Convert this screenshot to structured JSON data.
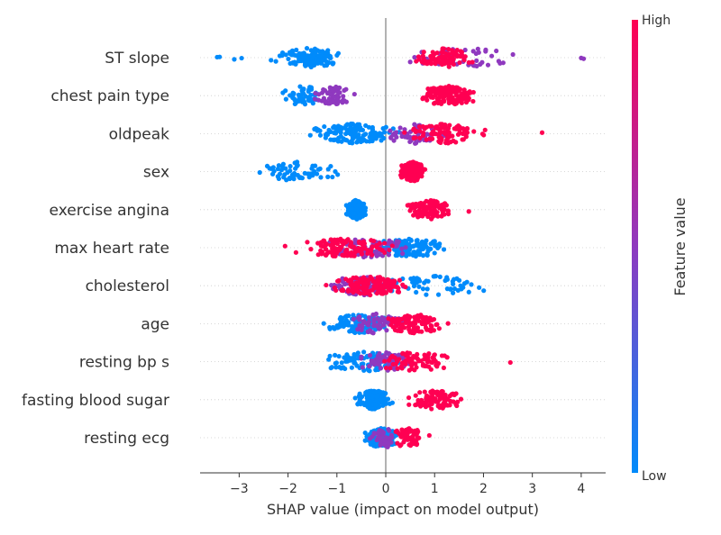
{
  "chart_data": {
    "type": "scatter",
    "subtype": "shap-beeswarm",
    "xlabel": "SHAP value (impact on model output)",
    "xlim": [
      -3.8,
      4.5
    ],
    "x_ticks": [
      -3,
      -2,
      -1,
      0,
      1,
      2,
      3,
      4
    ],
    "x_tick_labels": [
      "−3",
      "−2",
      "−1",
      "0",
      "1",
      "2",
      "3",
      "4"
    ],
    "features": [
      {
        "name": "ST slope",
        "low": {
          "min": -2.8,
          "max": -0.9,
          "center": -1.55,
          "n": 120,
          "tail": [
            -3.45,
            -3.4,
            -3.1,
            -2.95
          ]
        },
        "mid": {
          "min": 0.5,
          "max": 3.5,
          "center": 1.6,
          "n": 50,
          "tail": [
            4.0,
            4.05
          ]
        },
        "high": {
          "min": 0.6,
          "max": 2.2,
          "center": 1.2,
          "n": 80,
          "tail": []
        }
      },
      {
        "name": "chest pain type",
        "low": {
          "min": -2.6,
          "max": -1.3,
          "center": -1.7,
          "n": 50,
          "tail": []
        },
        "mid": {
          "min": -1.5,
          "max": -0.5,
          "center": -1.05,
          "n": 55,
          "tail": []
        },
        "high": {
          "min": 0.7,
          "max": 2.3,
          "center": 1.25,
          "n": 150,
          "tail": []
        }
      },
      {
        "name": "oldpeak",
        "low": {
          "min": -2.4,
          "max": 0.3,
          "center": -0.7,
          "n": 130,
          "tail": []
        },
        "mid": {
          "min": -0.3,
          "max": 1.5,
          "center": 0.6,
          "n": 50,
          "tail": []
        },
        "high": {
          "min": 0.2,
          "max": 2.5,
          "center": 1.2,
          "n": 90,
          "tail": [
            3.2
          ]
        }
      },
      {
        "name": "sex",
        "low": {
          "min": -2.6,
          "max": -0.65,
          "center": -1.8,
          "n": 60,
          "tail": []
        },
        "mid": {
          "min": 0,
          "max": 0,
          "center": 0,
          "n": 0,
          "tail": []
        },
        "high": {
          "min": 0.3,
          "max": 1.0,
          "center": 0.55,
          "n": 200,
          "tail": []
        }
      },
      {
        "name": "exercise angina",
        "low": {
          "min": -0.9,
          "max": -0.4,
          "center": -0.6,
          "n": 200,
          "tail": []
        },
        "mid": {
          "min": 0,
          "max": 0,
          "center": 0,
          "n": 0,
          "tail": []
        },
        "high": {
          "min": 0.1,
          "max": 1.3,
          "center": 0.9,
          "n": 110,
          "tail": [
            1.7
          ]
        }
      },
      {
        "name": "max heart rate",
        "low": {
          "min": -0.6,
          "max": 1.5,
          "center": 0.5,
          "n": 130,
          "tail": []
        },
        "mid": {
          "min": -1.8,
          "max": 0.8,
          "center": -0.4,
          "n": 70,
          "tail": []
        },
        "high": {
          "min": -2.3,
          "max": 0.2,
          "center": -0.8,
          "n": 120,
          "tail": []
        }
      },
      {
        "name": "cholesterol",
        "low": {
          "min": 0.0,
          "max": 2.7,
          "center": 1.0,
          "n": 55,
          "tail": []
        },
        "mid": {
          "min": -1.5,
          "max": 0.4,
          "center": -0.5,
          "n": 90,
          "tail": []
        },
        "high": {
          "min": -1.6,
          "max": 0.6,
          "center": -0.3,
          "n": 130,
          "tail": []
        }
      },
      {
        "name": "age",
        "low": {
          "min": -1.5,
          "max": 0.3,
          "center": -0.5,
          "n": 100,
          "tail": []
        },
        "mid": {
          "min": -1.0,
          "max": 0.6,
          "center": -0.2,
          "n": 60,
          "tail": []
        },
        "high": {
          "min": -0.2,
          "max": 1.5,
          "center": 0.6,
          "n": 110,
          "tail": []
        }
      },
      {
        "name": "resting bp s",
        "low": {
          "min": -2.1,
          "max": 0.4,
          "center": -0.4,
          "n": 90,
          "tail": []
        },
        "mid": {
          "min": -0.7,
          "max": 0.7,
          "center": 0.0,
          "n": 70,
          "tail": []
        },
        "high": {
          "min": -0.3,
          "max": 1.7,
          "center": 0.6,
          "n": 80,
          "tail": [
            2.55
          ]
        }
      },
      {
        "name": "fasting blood sugar",
        "low": {
          "min": -0.75,
          "max": 0.15,
          "center": -0.25,
          "n": 160,
          "tail": []
        },
        "mid": {
          "min": 0,
          "max": 0,
          "center": 0,
          "n": 0,
          "tail": []
        },
        "high": {
          "min": 0.4,
          "max": 1.9,
          "center": 1.0,
          "n": 90,
          "tail": []
        }
      },
      {
        "name": "resting ecg",
        "low": {
          "min": -0.65,
          "max": 0.3,
          "center": -0.1,
          "n": 110,
          "tail": []
        },
        "mid": {
          "min": -0.4,
          "max": 0.4,
          "center": 0.0,
          "n": 40,
          "tail": []
        },
        "high": {
          "min": 0.2,
          "max": 1.3,
          "center": 0.45,
          "n": 60,
          "tail": []
        }
      }
    ],
    "colorbar": {
      "label": "Feature value",
      "high_label": "High",
      "low_label": "Low",
      "low_color": "#008bfb",
      "mid_color": "#8f39bf",
      "high_color": "#ff0052"
    },
    "grid": false,
    "zero_line": true
  }
}
